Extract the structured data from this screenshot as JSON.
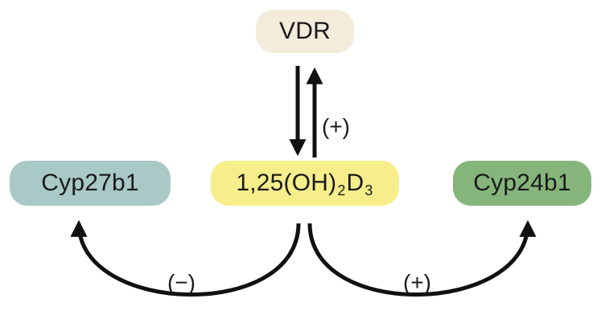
{
  "nodes": {
    "vdr": "VDR",
    "center": {
      "pre": "1,25(OH)",
      "sub1": "2",
      "mid": "D",
      "sub2": "3"
    },
    "cyp27b1": "Cyp27b1",
    "cyp24b1": "Cyp24b1"
  },
  "labels": {
    "vdr_to_center_up": "(+)",
    "to_cyp27b1": "(−)",
    "to_cyp24b1": "(+)"
  },
  "colors": {
    "vdr_fill": "#f3ecdb",
    "center_fill": "#f6ee8b",
    "cyp27b1_fill": "#a8c9c5",
    "cyp24b1_fill": "#86b57c",
    "arrow": "#111111"
  }
}
